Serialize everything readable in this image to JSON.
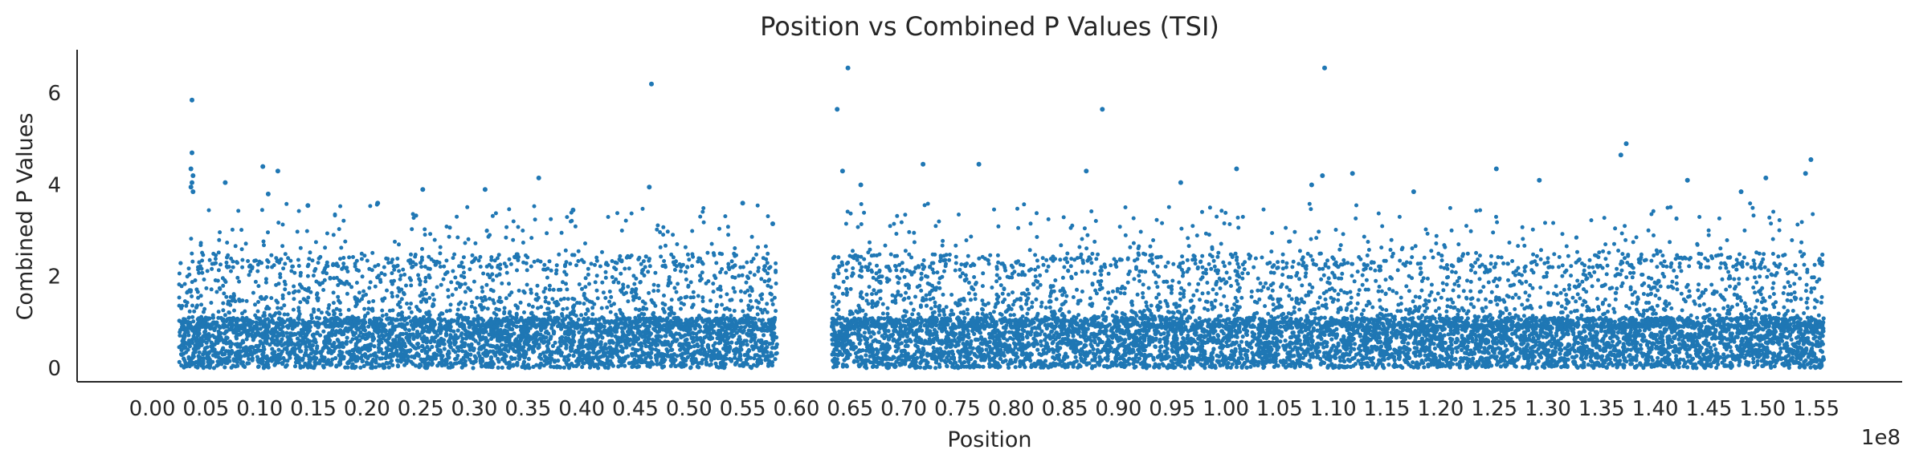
{
  "chart_data": {
    "type": "scatter",
    "title": "Position vs Combined P Values (TSI)",
    "xlabel": "Position",
    "ylabel": "Combined P Values",
    "x_offset_label": "1e8",
    "x_tick_values": [
      0.0,
      0.05,
      0.1,
      0.15,
      0.2,
      0.25,
      0.3,
      0.35,
      0.4,
      0.45,
      0.5,
      0.55,
      0.6,
      0.65,
      0.7,
      0.75,
      0.8,
      0.85,
      0.9,
      0.95,
      1.0,
      1.05,
      1.1,
      1.15,
      1.2,
      1.25,
      1.3,
      1.35,
      1.4,
      1.45,
      1.5,
      1.55
    ],
    "x_tick_labels": [
      "0.00",
      "0.05",
      "0.10",
      "0.15",
      "0.20",
      "0.25",
      "0.30",
      "0.35",
      "0.40",
      "0.45",
      "0.50",
      "0.55",
      "0.60",
      "0.65",
      "0.70",
      "0.75",
      "0.80",
      "0.85",
      "0.90",
      "0.95",
      "1.00",
      "1.05",
      "1.10",
      "1.15",
      "1.20",
      "1.25",
      "1.30",
      "1.35",
      "1.40",
      "1.45",
      "1.50",
      "1.55"
    ],
    "y_tick_values": [
      0,
      2,
      4,
      6
    ],
    "y_tick_labels": [
      "0",
      "2",
      "4",
      "6"
    ],
    "xlim": [
      -0.07,
      1.63
    ],
    "ylim": [
      -0.3,
      6.95
    ],
    "grid": false,
    "marker_color": "#1f77b4",
    "x_range_data": [
      0.025,
      1.557
    ],
    "data_gap": [
      0.582,
      0.633
    ],
    "peaks": [
      {
        "x": 0.037,
        "y": 5.85
      },
      {
        "x": 0.037,
        "y": 4.7
      },
      {
        "x": 0.036,
        "y": 4.35
      },
      {
        "x": 0.038,
        "y": 4.2
      },
      {
        "x": 0.037,
        "y": 4.05
      },
      {
        "x": 0.036,
        "y": 3.95
      },
      {
        "x": 0.038,
        "y": 3.85
      },
      {
        "x": 0.068,
        "y": 4.05
      },
      {
        "x": 0.103,
        "y": 4.4
      },
      {
        "x": 0.117,
        "y": 4.3
      },
      {
        "x": 0.108,
        "y": 3.8
      },
      {
        "x": 0.145,
        "y": 3.55
      },
      {
        "x": 0.21,
        "y": 3.6
      },
      {
        "x": 0.252,
        "y": 3.9
      },
      {
        "x": 0.31,
        "y": 3.9
      },
      {
        "x": 0.36,
        "y": 4.15
      },
      {
        "x": 0.392,
        "y": 3.45
      },
      {
        "x": 0.465,
        "y": 6.2
      },
      {
        "x": 0.463,
        "y": 3.95
      },
      {
        "x": 0.55,
        "y": 3.6
      },
      {
        "x": 0.578,
        "y": 3.15
      },
      {
        "x": 0.638,
        "y": 5.65
      },
      {
        "x": 0.648,
        "y": 6.55
      },
      {
        "x": 0.643,
        "y": 4.3
      },
      {
        "x": 0.66,
        "y": 4.0
      },
      {
        "x": 0.718,
        "y": 4.45
      },
      {
        "x": 0.77,
        "y": 4.45
      },
      {
        "x": 0.87,
        "y": 4.3
      },
      {
        "x": 0.885,
        "y": 5.65
      },
      {
        "x": 0.958,
        "y": 4.05
      },
      {
        "x": 1.01,
        "y": 4.35
      },
      {
        "x": 1.092,
        "y": 6.55
      },
      {
        "x": 1.09,
        "y": 4.2
      },
      {
        "x": 1.08,
        "y": 4.0
      },
      {
        "x": 1.118,
        "y": 4.25
      },
      {
        "x": 1.175,
        "y": 3.85
      },
      {
        "x": 1.252,
        "y": 4.35
      },
      {
        "x": 1.292,
        "y": 4.1
      },
      {
        "x": 1.373,
        "y": 4.9
      },
      {
        "x": 1.368,
        "y": 4.65
      },
      {
        "x": 1.43,
        "y": 4.1
      },
      {
        "x": 1.503,
        "y": 4.15
      },
      {
        "x": 1.545,
        "y": 4.55
      },
      {
        "x": 1.54,
        "y": 4.25
      },
      {
        "x": 1.48,
        "y": 3.85
      }
    ]
  }
}
